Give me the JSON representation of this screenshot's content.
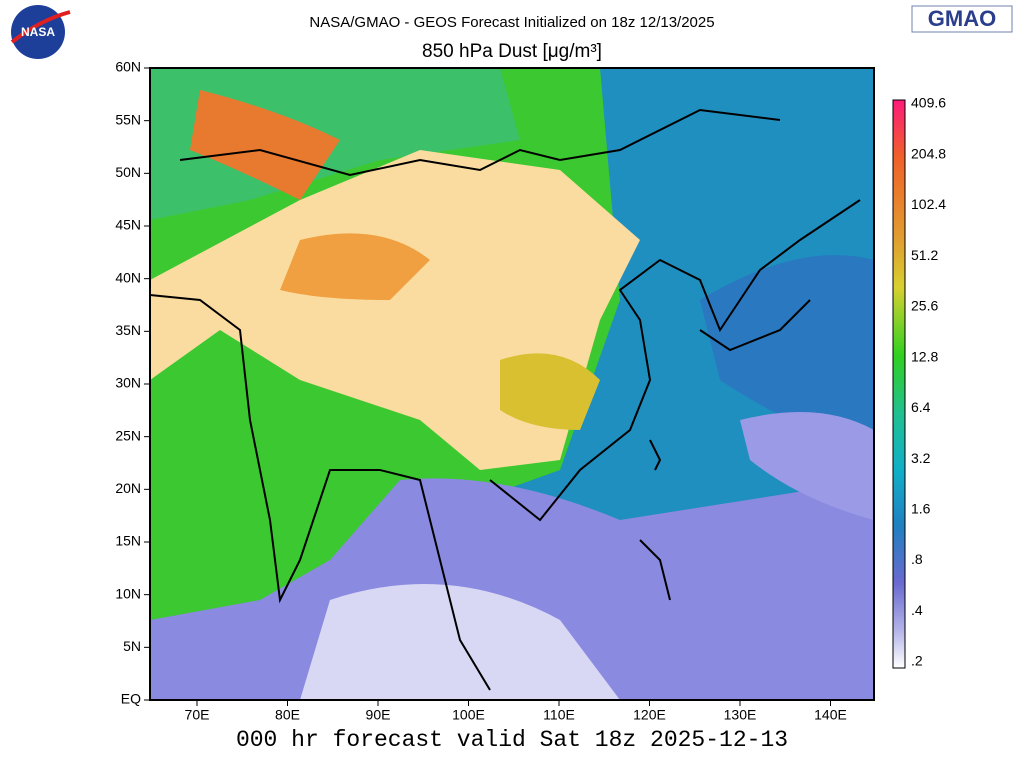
{
  "header": {
    "logo_left": "NASA",
    "line1": "NASA/GMAO - GEOS Forecast Initialized on 18z 12/13/2025",
    "title": "850 hPa Dust [μg/m³]",
    "logo_right": "GMAO"
  },
  "map": {
    "lat_labels": [
      "60N",
      "55N",
      "50N",
      "45N",
      "40N",
      "35N",
      "30N",
      "25N",
      "20N",
      "15N",
      "10N",
      "5N",
      "EQ"
    ],
    "lon_labels": [
      "70E",
      "80E",
      "90E",
      "100E",
      "110E",
      "120E",
      "130E",
      "140E"
    ]
  },
  "colorbar": {
    "labels": [
      "409.6",
      "204.8",
      "102.4",
      "51.2",
      "25.6",
      "12.8",
      "6.4",
      "3.2",
      "1.6",
      ".8",
      ".4",
      ".2"
    ]
  },
  "footer": "000 hr forecast valid Sat 18z 2025-12-13"
}
